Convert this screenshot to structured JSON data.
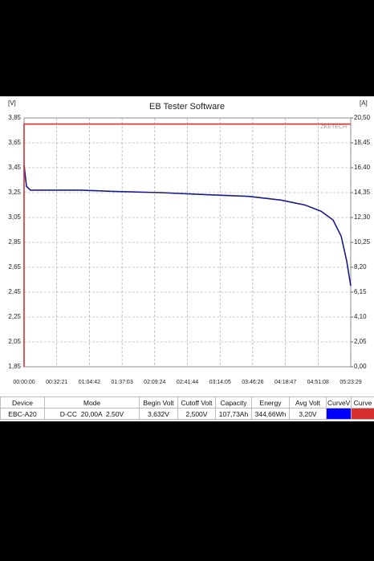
{
  "chart_data": {
    "type": "line",
    "title": "EB Tester Software",
    "y_label": "[V]",
    "y2_label": "[A]",
    "watermark": "ZKETECH",
    "xlim": [
      0,
      19409
    ],
    "xticks": [
      {
        "value": 0,
        "label": "00:00:00"
      },
      {
        "value": 1941,
        "label": "00:32:21"
      },
      {
        "value": 3882,
        "label": "01:04:42"
      },
      {
        "value": 5823,
        "label": "01:37:03"
      },
      {
        "value": 7764,
        "label": "02:09:24"
      },
      {
        "value": 9704,
        "label": "02:41:44"
      },
      {
        "value": 11645,
        "label": "03:14:05"
      },
      {
        "value": 13586,
        "label": "03:46:26"
      },
      {
        "value": 15527,
        "label": "04:18:47"
      },
      {
        "value": 17468,
        "label": "04:51:08"
      },
      {
        "value": 19409,
        "label": "05:23:29"
      }
    ],
    "ylim": [
      1.85,
      3.85
    ],
    "yticks": [
      {
        "value": 1.85,
        "label": "1,85"
      },
      {
        "value": 2.05,
        "label": "2,05"
      },
      {
        "value": 2.25,
        "label": "2,25"
      },
      {
        "value": 2.45,
        "label": "2,45"
      },
      {
        "value": 2.65,
        "label": "2,65"
      },
      {
        "value": 2.85,
        "label": "2,85"
      },
      {
        "value": 3.05,
        "label": "3,05"
      },
      {
        "value": 3.25,
        "label": "3,25"
      },
      {
        "value": 3.45,
        "label": "3,45"
      },
      {
        "value": 3.65,
        "label": "3,65"
      },
      {
        "value": 3.85,
        "label": "3,85"
      }
    ],
    "y2lim": [
      0,
      20.5
    ],
    "y2ticks": [
      {
        "value": 0,
        "label": "0,00"
      },
      {
        "value": 2.05,
        "label": "2,05"
      },
      {
        "value": 4.1,
        "label": "4,10"
      },
      {
        "value": 6.15,
        "label": "6,15"
      },
      {
        "value": 8.2,
        "label": "8,20"
      },
      {
        "value": 10.25,
        "label": "10,25"
      },
      {
        "value": 12.3,
        "label": "12,30"
      },
      {
        "value": 14.35,
        "label": "14,35"
      },
      {
        "value": 16.4,
        "label": "16,40"
      },
      {
        "value": 18.45,
        "label": "18,45"
      },
      {
        "value": 20.5,
        "label": "20,50"
      }
    ],
    "grid": true,
    "series": [
      {
        "color": "#1a1a8c",
        "x": [
          0,
          143,
          380,
          3340,
          5250,
          8100,
          11450,
          13360,
          15260,
          16700,
          17650,
          18360,
          18840,
          19170,
          19409
        ],
        "values": [
          3.47,
          3.3,
          3.27,
          3.27,
          3.26,
          3.25,
          3.23,
          3.22,
          3.19,
          3.15,
          3.1,
          3.03,
          2.9,
          2.7,
          2.5
        ]
      },
      {
        "color": "#d83030",
        "axis": "y2",
        "x": [
          0,
          0,
          19409
        ],
        "values": [
          0,
          20,
          20
        ]
      }
    ]
  },
  "table": {
    "headers": [
      "Device",
      "Mode",
      "Begin Volt",
      "Cutoff Volt",
      "Capacity",
      "Energy",
      "Avg Volt",
      "CurveV",
      "Curve"
    ],
    "rows": [
      [
        "EBC-A20",
        "D-CC  20,00A  2,50V",
        "3,632V",
        "2,500V",
        "107,73Ah",
        "344,66Wh",
        "3,20V"
      ]
    ]
  }
}
